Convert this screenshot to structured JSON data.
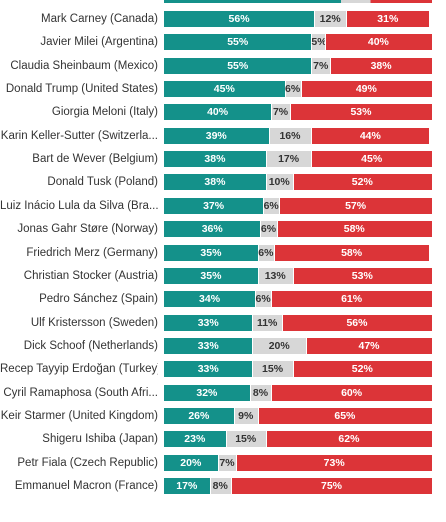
{
  "chart_data": {
    "type": "bar",
    "stacked": true,
    "orientation": "horizontal",
    "xlim": [
      0,
      100
    ],
    "unit": "%",
    "colors": {
      "approve": "#14918a",
      "neutral": "#d7d7d7",
      "disapprove": "#dc3438"
    },
    "rows": [
      {
        "name": "Mark Carney (Canada)",
        "approve": 56,
        "neutral": 12,
        "disapprove": 31
      },
      {
        "name": "Javier Milei (Argentina)",
        "approve": 55,
        "neutral": 5,
        "disapprove": 40
      },
      {
        "name": "Claudia Sheinbaum (Mexico)",
        "approve": 55,
        "neutral": 7,
        "disapprove": 38
      },
      {
        "name": "Donald Trump (United States)",
        "approve": 45,
        "neutral": 6,
        "disapprove": 49
      },
      {
        "name": "Giorgia Meloni (Italy)",
        "approve": 40,
        "neutral": 7,
        "disapprove": 53
      },
      {
        "name": "Karin Keller-Sutter (Switzerla...",
        "approve": 39,
        "neutral": 16,
        "disapprove": 44
      },
      {
        "name": "Bart de Wever (Belgium)",
        "approve": 38,
        "neutral": 17,
        "disapprove": 45
      },
      {
        "name": "Donald Tusk (Poland)",
        "approve": 38,
        "neutral": 10,
        "disapprove": 52
      },
      {
        "name": "Luiz Inácio Lula da Silva (Bra...",
        "approve": 37,
        "neutral": 6,
        "disapprove": 57
      },
      {
        "name": "Jonas Gahr Støre (Norway)",
        "approve": 36,
        "neutral": 6,
        "disapprove": 58
      },
      {
        "name": "Friedrich Merz (Germany)",
        "approve": 35,
        "neutral": 6,
        "disapprove": 58
      },
      {
        "name": "Christian Stocker (Austria)",
        "approve": 35,
        "neutral": 13,
        "disapprove": 53
      },
      {
        "name": "Pedro Sánchez (Spain)",
        "approve": 34,
        "neutral": 6,
        "disapprove": 61
      },
      {
        "name": "Ulf Kristersson (Sweden)",
        "approve": 33,
        "neutral": 11,
        "disapprove": 56
      },
      {
        "name": "Dick Schoof (Netherlands)",
        "approve": 33,
        "neutral": 20,
        "disapprove": 47
      },
      {
        "name": "Recep Tayyip Erdoğan (Turkey)",
        "approve": 33,
        "neutral": 15,
        "disapprove": 52
      },
      {
        "name": "Cyril Ramaphosa (South Afri...",
        "approve": 32,
        "neutral": 8,
        "disapprove": 60
      },
      {
        "name": "Keir Starmer (United Kingdom)",
        "approve": 26,
        "neutral": 9,
        "disapprove": 65
      },
      {
        "name": "Shigeru Ishiba (Japan)",
        "approve": 23,
        "neutral": 15,
        "disapprove": 62
      },
      {
        "name": "Petr Fiala (Czech Republic)",
        "approve": 20,
        "neutral": 7,
        "disapprove": 73
      },
      {
        "name": "Emmanuel Macron (France)",
        "approve": 17,
        "neutral": 8,
        "disapprove": 75
      }
    ]
  }
}
